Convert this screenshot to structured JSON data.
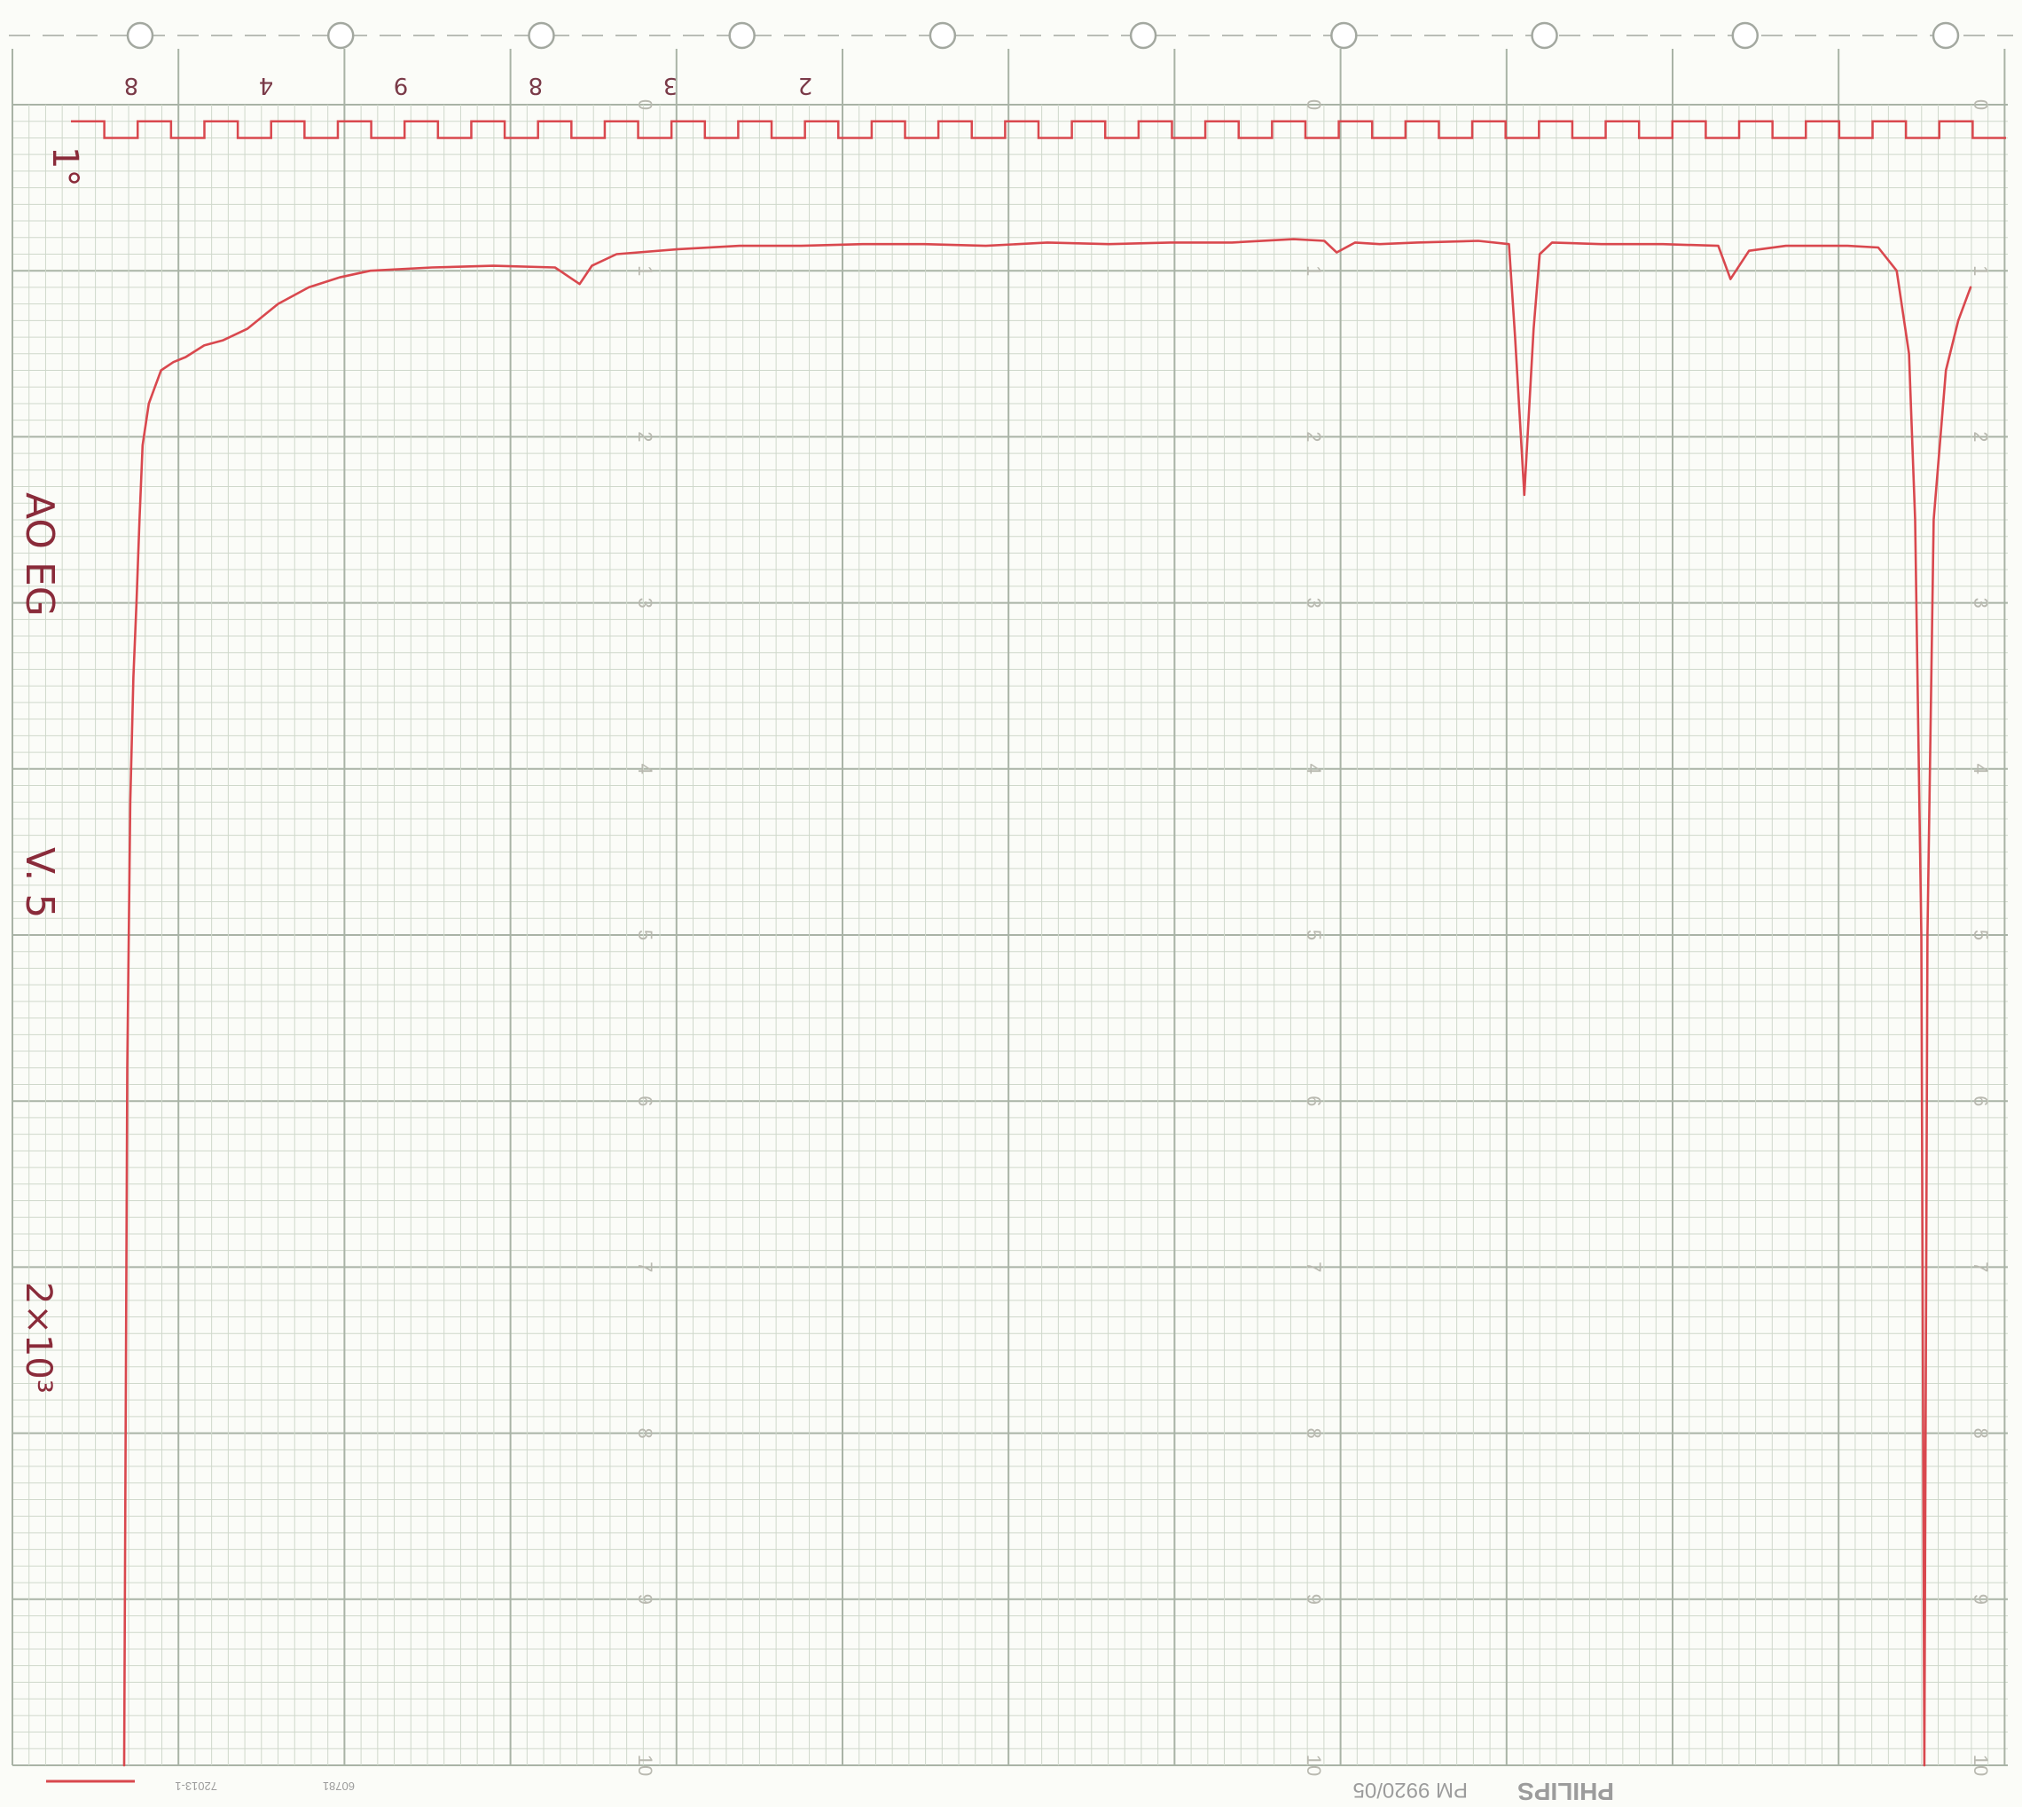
{
  "colors": {
    "paper": "#fbfcf8",
    "grid_minor": "#cfd8cb",
    "grid_major": "#a9b3a6",
    "trace": "#d9484e",
    "ink": "#8a2b3a",
    "scale_text": "#b9b9b0"
  },
  "sprocket_holes": 10,
  "top_numbers": [
    "8",
    "4",
    "9",
    "8",
    "3",
    "2"
  ],
  "scale_labels": [
    "0",
    "1",
    "2",
    "3",
    "4",
    "5",
    "6",
    "7",
    "8",
    "9",
    "10"
  ],
  "handwriting": {
    "marker": "1°",
    "line1": "AO EG",
    "line2": "V. 5",
    "line3": "2×10³"
  },
  "footer": {
    "brand": "PHILIPS",
    "model": "PM 9920/05",
    "code1": "72013-1",
    "code2": "60781"
  },
  "chart_data": {
    "type": "line",
    "title": "",
    "xlabel": "",
    "ylabel": "",
    "x_range": [
      0,
      30
    ],
    "ylim": [
      0,
      10
    ],
    "y_reversed": true,
    "grid": true,
    "scale_columns": 3,
    "timing_marker": {
      "name": "",
      "level_high": 0.1,
      "level_low": 0.2,
      "segments": 58
    },
    "series": [
      {
        "name": "",
        "x": [
          0,
          0.05,
          0.1,
          0.15,
          0.2,
          0.25,
          0.3,
          0.4,
          0.5,
          0.6,
          0.8,
          1.0,
          1.3,
          1.6,
          2.0,
          2.5,
          3.0,
          3.5,
          4.0,
          5.0,
          6.0,
          7.0,
          7.4,
          7.6,
          8.0,
          9.0,
          10.0,
          11.0,
          12.0,
          13.0,
          14.0,
          15.0,
          16.0,
          17.0,
          18.0,
          19.0,
          19.5,
          19.7,
          20.0,
          20.4,
          21.0,
          22.0,
          22.5,
          22.6,
          22.75,
          22.9,
          23.0,
          23.2,
          24.0,
          25.0,
          25.9,
          26.1,
          26.4,
          27.0,
          28.0,
          28.5,
          28.8,
          29.0,
          29.1,
          29.2,
          29.25,
          29.3,
          29.4,
          29.6,
          29.8,
          30.0
        ],
        "y": [
          10.0,
          5.8,
          4.2,
          3.45,
          3.0,
          2.5,
          2.05,
          1.8,
          1.7,
          1.6,
          1.55,
          1.52,
          1.45,
          1.42,
          1.35,
          1.2,
          1.1,
          1.04,
          1.0,
          0.98,
          0.97,
          0.98,
          1.08,
          0.97,
          0.9,
          0.87,
          0.85,
          0.85,
          0.84,
          0.84,
          0.85,
          0.83,
          0.84,
          0.83,
          0.83,
          0.81,
          0.82,
          0.89,
          0.83,
          0.84,
          0.83,
          0.82,
          0.84,
          1.4,
          2.35,
          1.35,
          0.9,
          0.83,
          0.84,
          0.84,
          0.85,
          1.05,
          0.88,
          0.85,
          0.85,
          0.86,
          1.0,
          1.5,
          2.5,
          5.0,
          10.0,
          5.0,
          2.5,
          1.6,
          1.3,
          1.1
        ]
      }
    ]
  }
}
